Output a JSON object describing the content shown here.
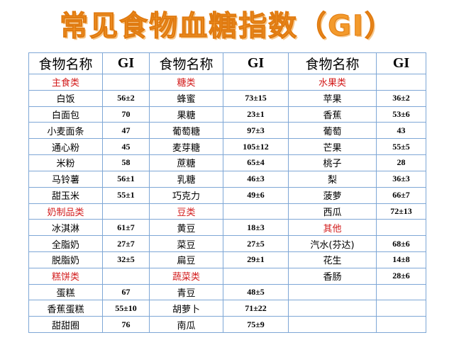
{
  "title": "常见食物血糖指数（GI）",
  "header": [
    "食物名称",
    "GI",
    "食物名称",
    "GI",
    "食物名称",
    "GI"
  ],
  "rows": [
    [
      {
        "t": "主食类",
        "k": "cat"
      },
      {
        "t": "",
        "k": "val"
      },
      {
        "t": "糖类",
        "k": "cat"
      },
      {
        "t": "",
        "k": "val"
      },
      {
        "t": "水果类",
        "k": "cat"
      },
      {
        "t": "",
        "k": "val"
      }
    ],
    [
      {
        "t": "白饭",
        "k": "name"
      },
      {
        "t": "56±2",
        "k": "val"
      },
      {
        "t": "蜂蜜",
        "k": "name"
      },
      {
        "t": "73±15",
        "k": "val"
      },
      {
        "t": "苹果",
        "k": "name"
      },
      {
        "t": "36±2",
        "k": "val"
      }
    ],
    [
      {
        "t": "白面包",
        "k": "name"
      },
      {
        "t": "70",
        "k": "val"
      },
      {
        "t": "果糖",
        "k": "name"
      },
      {
        "t": "23±1",
        "k": "val"
      },
      {
        "t": "香蕉",
        "k": "name"
      },
      {
        "t": "53±6",
        "k": "val"
      }
    ],
    [
      {
        "t": "小麦面条",
        "k": "name"
      },
      {
        "t": "47",
        "k": "val"
      },
      {
        "t": "葡萄糖",
        "k": "name"
      },
      {
        "t": "97±3",
        "k": "val"
      },
      {
        "t": "葡萄",
        "k": "name"
      },
      {
        "t": "43",
        "k": "val"
      }
    ],
    [
      {
        "t": "通心粉",
        "k": "name"
      },
      {
        "t": "45",
        "k": "val"
      },
      {
        "t": "麦芽糖",
        "k": "name"
      },
      {
        "t": "105±12",
        "k": "val"
      },
      {
        "t": "芒果",
        "k": "name"
      },
      {
        "t": "55±5",
        "k": "val"
      }
    ],
    [
      {
        "t": "米粉",
        "k": "name"
      },
      {
        "t": "58",
        "k": "val"
      },
      {
        "t": "蔗糖",
        "k": "name"
      },
      {
        "t": "65±4",
        "k": "val"
      },
      {
        "t": "桃子",
        "k": "name"
      },
      {
        "t": "28",
        "k": "val"
      }
    ],
    [
      {
        "t": "马铃薯",
        "k": "name"
      },
      {
        "t": "56±1",
        "k": "val"
      },
      {
        "t": "乳糖",
        "k": "name"
      },
      {
        "t": "46±3",
        "k": "val"
      },
      {
        "t": "梨",
        "k": "name"
      },
      {
        "t": "36±3",
        "k": "val"
      }
    ],
    [
      {
        "t": "甜玉米",
        "k": "name"
      },
      {
        "t": "55±1",
        "k": "val"
      },
      {
        "t": "巧克力",
        "k": "name"
      },
      {
        "t": "49±6",
        "k": "val"
      },
      {
        "t": "菠萝",
        "k": "name"
      },
      {
        "t": "66±7",
        "k": "val"
      }
    ],
    [
      {
        "t": "奶制品类",
        "k": "cat"
      },
      {
        "t": "",
        "k": "val"
      },
      {
        "t": "豆类",
        "k": "cat"
      },
      {
        "t": "",
        "k": "val"
      },
      {
        "t": "西瓜",
        "k": "name"
      },
      {
        "t": "72±13",
        "k": "val"
      }
    ],
    [
      {
        "t": "冰淇淋",
        "k": "name"
      },
      {
        "t": "61±7",
        "k": "val"
      },
      {
        "t": "黄豆",
        "k": "name"
      },
      {
        "t": "18±3",
        "k": "val"
      },
      {
        "t": "其他",
        "k": "cat"
      },
      {
        "t": "",
        "k": "val"
      }
    ],
    [
      {
        "t": "全脂奶",
        "k": "name"
      },
      {
        "t": "27±7",
        "k": "val"
      },
      {
        "t": "菜豆",
        "k": "name"
      },
      {
        "t": "27±5",
        "k": "val"
      },
      {
        "t": "汽水(芬达)",
        "k": "name"
      },
      {
        "t": "68±6",
        "k": "val"
      }
    ],
    [
      {
        "t": "脱脂奶",
        "k": "name"
      },
      {
        "t": "32±5",
        "k": "val"
      },
      {
        "t": "扁豆",
        "k": "name"
      },
      {
        "t": "29±1",
        "k": "val"
      },
      {
        "t": "花生",
        "k": "name"
      },
      {
        "t": "14±8",
        "k": "val"
      }
    ],
    [
      {
        "t": "糕饼类",
        "k": "cat"
      },
      {
        "t": "",
        "k": "val"
      },
      {
        "t": "蔬菜类",
        "k": "cat"
      },
      {
        "t": "",
        "k": "val"
      },
      {
        "t": "香肠",
        "k": "name"
      },
      {
        "t": "28±6",
        "k": "val"
      }
    ],
    [
      {
        "t": "蛋糕",
        "k": "name"
      },
      {
        "t": "67",
        "k": "val"
      },
      {
        "t": "青豆",
        "k": "name"
      },
      {
        "t": "48±5",
        "k": "val"
      },
      {
        "t": "",
        "k": "name"
      },
      {
        "t": "",
        "k": "val"
      }
    ],
    [
      {
        "t": "香蕉蛋糕",
        "k": "name"
      },
      {
        "t": "55±10",
        "k": "val"
      },
      {
        "t": "胡萝卜",
        "k": "name"
      },
      {
        "t": "71±22",
        "k": "val"
      },
      {
        "t": "",
        "k": "name"
      },
      {
        "t": "",
        "k": "val"
      }
    ],
    [
      {
        "t": "甜甜圈",
        "k": "name"
      },
      {
        "t": "76",
        "k": "val"
      },
      {
        "t": "南瓜",
        "k": "name"
      },
      {
        "t": "75±9",
        "k": "val"
      },
      {
        "t": "",
        "k": "name"
      },
      {
        "t": "",
        "k": "val"
      }
    ]
  ],
  "colors": {
    "title": "#f39a2c",
    "category": "#d21a1a",
    "border": "#7ea7d6"
  }
}
